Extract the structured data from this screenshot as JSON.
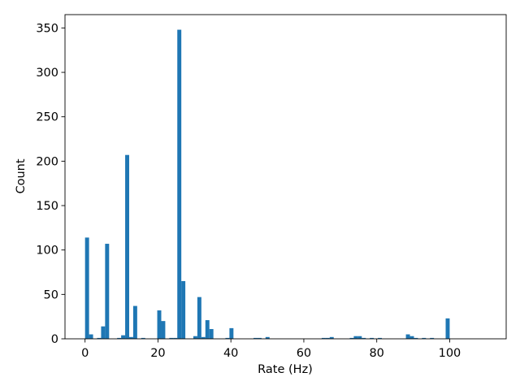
{
  "chart_data": {
    "type": "bar",
    "title": "",
    "xlabel": "Rate (Hz)",
    "ylabel": "Count",
    "xlim": [
      -5.5,
      115.5
    ],
    "ylim": [
      0,
      365
    ],
    "xticks": [
      0,
      20,
      40,
      60,
      80,
      100
    ],
    "yticks": [
      0,
      50,
      100,
      150,
      200,
      250,
      300,
      350
    ],
    "bin_width": 1.1,
    "grid": false,
    "legend": "none",
    "colors": {
      "bars": "#1f77b4"
    },
    "bins_start": [
      0,
      1.1,
      3.3,
      4.4,
      5.5,
      8.8,
      9.9,
      11.0,
      12.1,
      13.2,
      15.4,
      19.8,
      20.9,
      23.1,
      24.2,
      25.3,
      26.4,
      29.7,
      30.8,
      31.9,
      33.0,
      34.1,
      38.5,
      39.6,
      46.2,
      47.3,
      49.5,
      64.9,
      66.0,
      67.1,
      72.6,
      73.7,
      74.8,
      75.9,
      78.1,
      80.3,
      88.0,
      89.1,
      90.2,
      92.4,
      94.6,
      98.9
    ],
    "values": [
      114,
      5,
      1,
      14,
      107,
      1,
      4,
      207,
      2,
      37,
      1,
      32,
      20,
      1,
      1,
      348,
      65,
      3,
      47,
      2,
      21,
      11,
      1,
      12,
      1,
      1,
      2,
      1,
      1,
      2,
      1,
      3,
      3,
      1,
      1,
      1,
      5,
      3,
      1,
      1,
      1,
      23
    ]
  }
}
